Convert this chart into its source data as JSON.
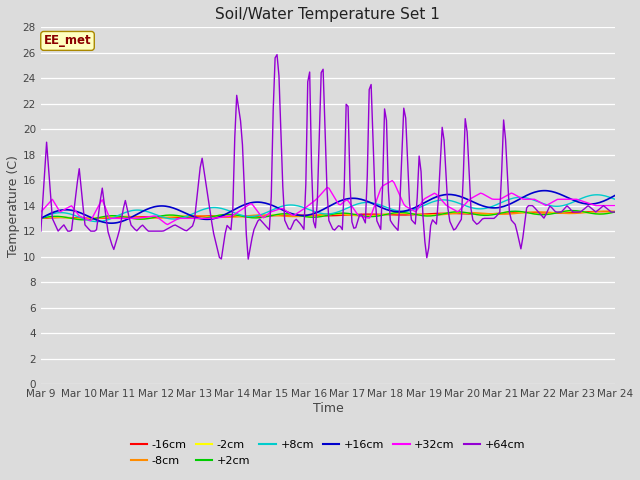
{
  "title": "Soil/Water Temperature Set 1",
  "xlabel": "Time",
  "ylabel": "Temperature (C)",
  "ylim": [
    0,
    28
  ],
  "yticks": [
    0,
    2,
    4,
    6,
    8,
    10,
    12,
    14,
    16,
    18,
    20,
    22,
    24,
    26,
    28
  ],
  "xtick_labels": [
    "Mar 9",
    "Mar 10",
    "Mar 11",
    "Mar 12",
    "Mar 13",
    "Mar 14",
    "Mar 15",
    "Mar 16",
    "Mar 17",
    "Mar 18",
    "Mar 19",
    "Mar 20",
    "Mar 21",
    "Mar 22",
    "Mar 23",
    "Mar 24"
  ],
  "annotation_text": "EE_met",
  "annotation_color": "#8B0000",
  "annotation_bg": "#FFFFC0",
  "bg_color": "#DCDCDC",
  "series_colors": {
    "-16cm": "#FF0000",
    "-8cm": "#FF8C00",
    "-2cm": "#FFFF00",
    "+2cm": "#00CC00",
    "+8cm": "#00CCCC",
    "+16cm": "#0000CC",
    "+32cm": "#FF00FF",
    "+64cm": "#9400D3"
  },
  "legend_order": [
    "-16cm",
    "-8cm",
    "-2cm",
    "+2cm",
    "+8cm",
    "+16cm",
    "+32cm",
    "+64cm"
  ]
}
